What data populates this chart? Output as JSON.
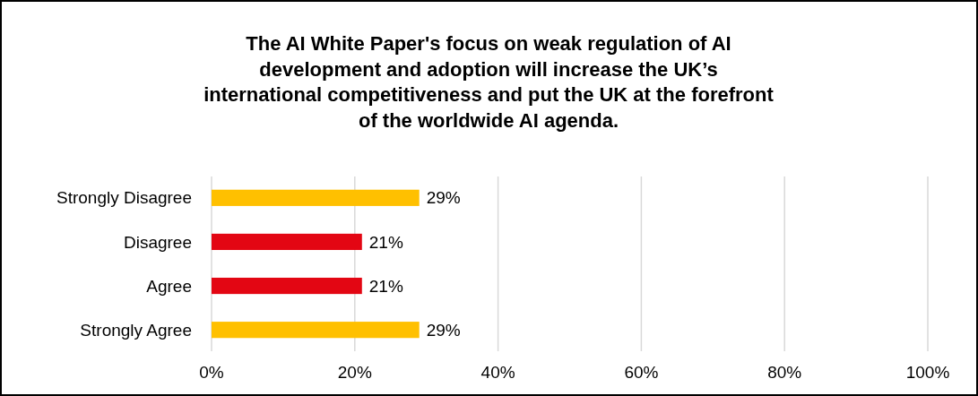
{
  "chart_data": {
    "type": "bar",
    "orientation": "horizontal",
    "title": "The AI White Paper's focus on weak regulation of AI\ndevelopment and adoption will increase the UK’s\ninternational competitiveness and put the UK at the forefront\nof the worldwide AI agenda.",
    "categories": [
      "Strongly Disagree",
      "Disagree",
      "Agree",
      "Strongly Agree"
    ],
    "values": [
      29,
      21,
      21,
      29
    ],
    "colors": [
      "#ffc000",
      "#e30613",
      "#e30613",
      "#ffc000"
    ],
    "value_labels": [
      "29%",
      "21%",
      "21%",
      "29%"
    ],
    "xlim": [
      0,
      100
    ],
    "xticks": [
      {
        "value": 0,
        "label": "0%"
      },
      {
        "value": 20,
        "label": "20%"
      },
      {
        "value": 40,
        "label": "40%"
      },
      {
        "value": 60,
        "label": "60%"
      },
      {
        "value": 80,
        "label": "80%"
      },
      {
        "value": 100,
        "label": "100%"
      }
    ],
    "grid": "x"
  }
}
